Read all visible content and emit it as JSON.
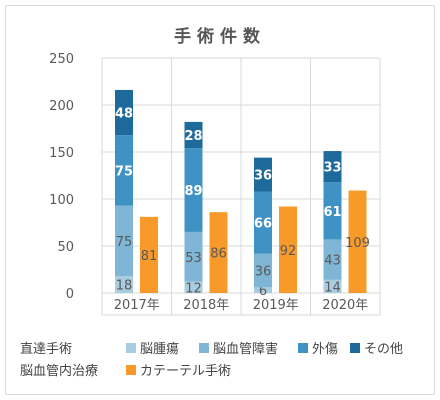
{
  "chart_data": {
    "type": "bar",
    "title": "手術件数",
    "categories": [
      "2017年",
      "2018年",
      "2019年",
      "2020年"
    ],
    "ylim": [
      0,
      250
    ],
    "yticks": [
      0,
      50,
      100,
      150,
      200,
      250
    ],
    "stacked_groups": [
      {
        "group": "直達手術",
        "series": [
          {
            "name": "脳腫瘍",
            "color": "#a9cde0",
            "values": [
              18,
              12,
              6,
              14
            ]
          },
          {
            "name": "脳血管障害",
            "color": "#7fb6d6",
            "values": [
              75,
              53,
              36,
              43
            ]
          },
          {
            "name": "外傷",
            "color": "#3e92c4",
            "values": [
              75,
              89,
              66,
              61
            ]
          },
          {
            "name": "その他",
            "color": "#1e6a9a",
            "values": [
              48,
              28,
              36,
              33
            ]
          }
        ]
      },
      {
        "group": "脳血管内治療",
        "series": [
          {
            "name": "カテーテル手術",
            "color": "#f79a2a",
            "values": [
              81,
              86,
              92,
              109
            ]
          }
        ]
      }
    ],
    "grid": true,
    "legend": "bottom"
  },
  "legend": {
    "group1_label": "直達手術",
    "group2_label": "脳血管内治療"
  }
}
